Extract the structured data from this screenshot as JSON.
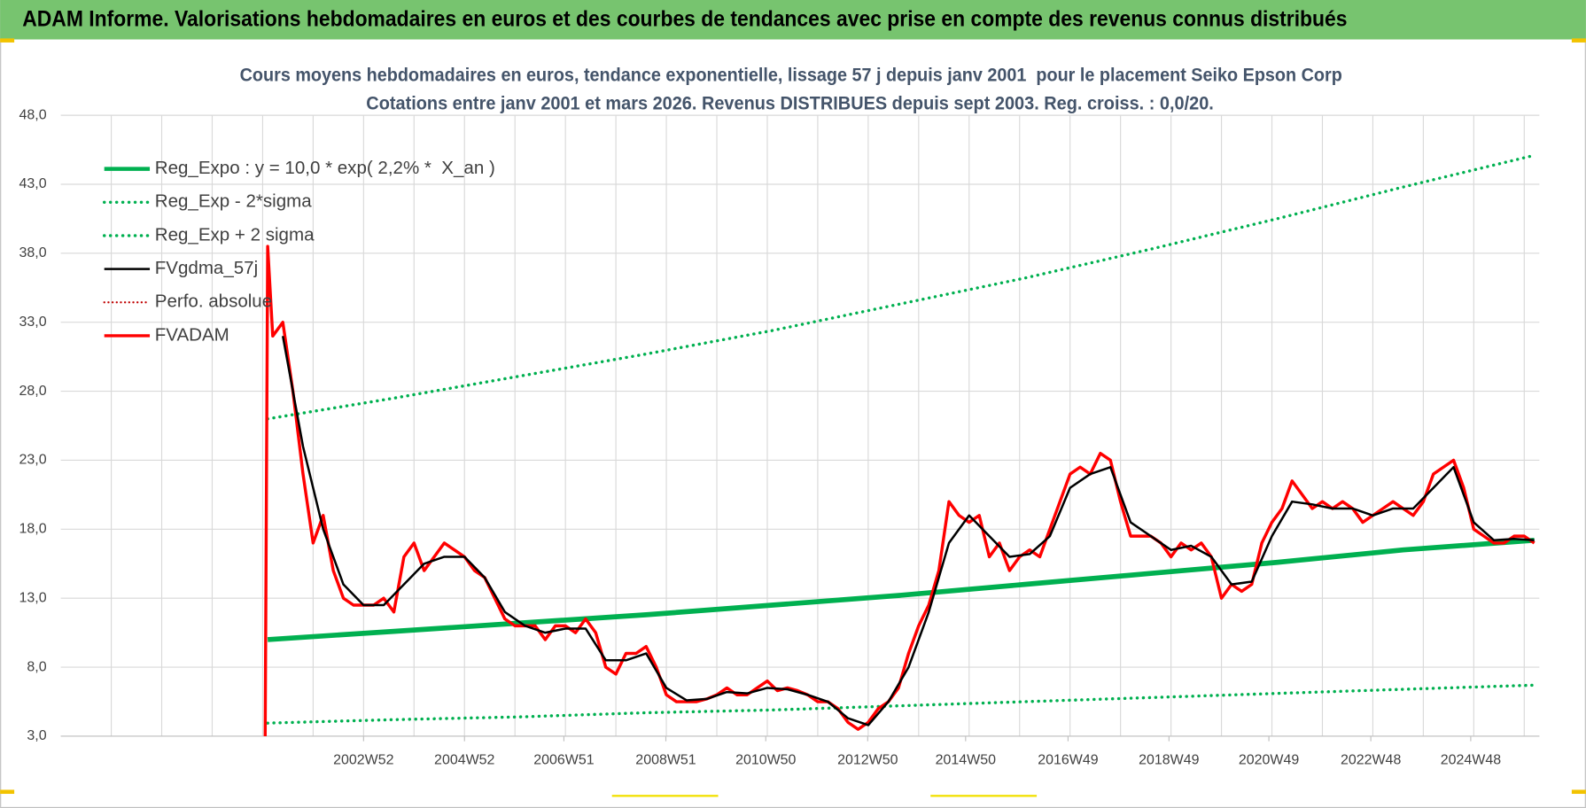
{
  "chart_data": {
    "type": "line",
    "header": "ADAM Informe. Valorisations hebdomadaires en euros et des courbes de tendances avec prise en compte des revenus connus distribués",
    "title": "Cours moyens hebdomadaires en euros, tendance exponentielle, lissage 57 j depuis janv 2001  pour le placement Seiko Epson Corp",
    "subtitle": "Cotations entre janv 2001 et mars 2026. Revenus DISTRIBUES depuis sept 2003. Reg. croiss. : 0,0/20.",
    "xlim": [
      1997,
      2026.3
    ],
    "ylim": [
      3,
      48
    ],
    "yticks": [
      {
        "value": 3,
        "label": "3,0"
      },
      {
        "value": 8,
        "label": "8,0"
      },
      {
        "value": 13,
        "label": "13,0"
      },
      {
        "value": 18,
        "label": "18,0"
      },
      {
        "value": 23,
        "label": "23,0"
      },
      {
        "value": 28,
        "label": "28,0"
      },
      {
        "value": 33,
        "label": "33,0"
      },
      {
        "value": 38,
        "label": "38,0"
      },
      {
        "value": 43,
        "label": "43,0"
      },
      {
        "value": 48,
        "label": "48,0"
      }
    ],
    "xticks": [
      {
        "value": 2003,
        "label": "2002W52"
      },
      {
        "value": 2005,
        "label": "2004W52"
      },
      {
        "value": 2006.97,
        "label": "2006W51"
      },
      {
        "value": 2008.99,
        "label": "2008W51"
      },
      {
        "value": 2010.97,
        "label": "2010W50"
      },
      {
        "value": 2012.99,
        "label": "2012W50"
      },
      {
        "value": 2014.93,
        "label": "2014W50"
      },
      {
        "value": 2016.96,
        "label": "2016W49"
      },
      {
        "value": 2018.96,
        "label": "2018W49"
      },
      {
        "value": 2020.94,
        "label": "2020W49"
      },
      {
        "value": 2022.96,
        "label": "2022W48"
      },
      {
        "value": 2024.94,
        "label": "2024W48"
      }
    ],
    "x_gridlines": [
      1998,
      1999,
      2000,
      2001,
      2002,
      2003,
      2004,
      2005,
      2006,
      2007,
      2008,
      2009,
      2010,
      2011,
      2012,
      2013,
      2014,
      2015,
      2016,
      2017,
      2018,
      2019,
      2020,
      2021,
      2022,
      2023,
      2024,
      2025,
      2026
    ],
    "grid": true,
    "legend": "top-left",
    "series": [
      {
        "name": "Reg_Expo : y = 10,0 * exp( 2,2% *  X_an )",
        "color": "#00b050",
        "style": "solid",
        "width": 5,
        "x": [
          2001.1,
          2003.6,
          2006.1,
          2008.6,
          2011.1,
          2013.6,
          2016.1,
          2018.6,
          2021.1,
          2023.6,
          2026.2
        ],
        "values": [
          10.0,
          10.6,
          11.2,
          11.8,
          12.5,
          13.2,
          14.0,
          14.8,
          15.6,
          16.5,
          17.2
        ]
      },
      {
        "name": "Reg_Exp - 2*sigma",
        "color": "#00b050",
        "style": "dotted",
        "width": 3,
        "x": [
          2001.1,
          2003.6,
          2006.1,
          2008.6,
          2011.1,
          2013.6,
          2016.1,
          2018.6,
          2021.1,
          2023.6,
          2026.2
        ],
        "values": [
          3.95,
          4.2,
          4.4,
          4.7,
          4.9,
          5.2,
          5.5,
          5.8,
          6.1,
          6.4,
          6.7
        ]
      },
      {
        "name": "Reg_Exp + 2 sigma",
        "color": "#00b050",
        "style": "dotted",
        "width": 3,
        "x": [
          2001.1,
          2003.6,
          2006.1,
          2008.6,
          2011.1,
          2013.6,
          2016.1,
          2018.6,
          2021.1,
          2023.6,
          2026.2
        ],
        "values": [
          26.0,
          27.5,
          29.1,
          30.7,
          32.4,
          34.3,
          36.2,
          38.3,
          40.5,
          42.8,
          45.1
        ]
      },
      {
        "name": "FVgdma_57j",
        "color": "#000000",
        "style": "solid",
        "width": 2.2,
        "x": [
          2001.4,
          2001.8,
          2002.2,
          2002.6,
          2003,
          2003.4,
          2003.8,
          2004.2,
          2004.6,
          2005,
          2005.4,
          2005.8,
          2006.2,
          2006.6,
          2007,
          2007.4,
          2007.8,
          2008.2,
          2008.6,
          2009,
          2009.4,
          2009.8,
          2010.2,
          2010.6,
          2011,
          2011.4,
          2011.8,
          2012.2,
          2012.6,
          2013,
          2013.4,
          2013.8,
          2014.2,
          2014.6,
          2015,
          2015.4,
          2015.8,
          2016.2,
          2016.6,
          2017,
          2017.4,
          2017.8,
          2018.2,
          2018.6,
          2019,
          2019.4,
          2019.8,
          2020.2,
          2020.6,
          2021,
          2021.4,
          2021.8,
          2022.2,
          2022.6,
          2023,
          2023.4,
          2023.8,
          2024.2,
          2024.6,
          2025,
          2025.4,
          2025.8,
          2026.2
        ],
        "values": [
          32,
          24,
          18,
          14,
          12.5,
          12.5,
          14,
          15.5,
          16,
          16,
          14.5,
          12,
          11,
          10.5,
          10.8,
          10.8,
          8.5,
          8.5,
          9,
          6.5,
          5.6,
          5.7,
          6.2,
          6.1,
          6.5,
          6.4,
          6,
          5.5,
          4.3,
          3.8,
          5.5,
          8,
          12,
          17,
          19,
          17.5,
          16,
          16.2,
          17.5,
          21,
          22,
          22.5,
          18.5,
          17.5,
          16.5,
          16.8,
          16,
          14,
          14.2,
          17.5,
          20,
          19.8,
          19.5,
          19.5,
          19,
          19.5,
          19.5,
          21,
          22.5,
          18.5,
          17.2,
          17.3,
          17.2
        ]
      },
      {
        "name": "Perfo. absolue",
        "color": "#c00000",
        "style": "dotted",
        "width": 2,
        "x": [],
        "values": []
      },
      {
        "name": "FVADAM",
        "color": "#ff0000",
        "style": "solid",
        "width": 3,
        "x": [
          2001.05,
          2001.1,
          2001.2,
          2001.4,
          2001.6,
          2001.8,
          2002,
          2002.2,
          2002.4,
          2002.6,
          2002.8,
          2003,
          2003.2,
          2003.4,
          2003.6,
          2003.8,
          2004,
          2004.2,
          2004.4,
          2004.6,
          2004.8,
          2005,
          2005.2,
          2005.4,
          2005.6,
          2005.8,
          2006,
          2006.2,
          2006.4,
          2006.6,
          2006.8,
          2007,
          2007.2,
          2007.4,
          2007.6,
          2007.8,
          2008,
          2008.2,
          2008.4,
          2008.6,
          2008.8,
          2009,
          2009.2,
          2009.4,
          2009.6,
          2009.8,
          2010,
          2010.2,
          2010.4,
          2010.6,
          2010.8,
          2011,
          2011.2,
          2011.4,
          2011.6,
          2011.8,
          2012,
          2012.2,
          2012.4,
          2012.6,
          2012.8,
          2013,
          2013.2,
          2013.4,
          2013.6,
          2013.8,
          2014,
          2014.2,
          2014.4,
          2014.6,
          2014.8,
          2015,
          2015.2,
          2015.4,
          2015.6,
          2015.8,
          2016,
          2016.2,
          2016.4,
          2016.6,
          2016.8,
          2017,
          2017.2,
          2017.4,
          2017.6,
          2017.8,
          2018,
          2018.2,
          2018.4,
          2018.6,
          2018.8,
          2019,
          2019.2,
          2019.4,
          2019.6,
          2019.8,
          2020,
          2020.2,
          2020.4,
          2020.6,
          2020.8,
          2021,
          2021.2,
          2021.4,
          2021.6,
          2021.8,
          2022,
          2022.2,
          2022.4,
          2022.6,
          2022.8,
          2023,
          2023.2,
          2023.4,
          2023.6,
          2023.8,
          2024,
          2024.2,
          2024.4,
          2024.6,
          2024.8,
          2025,
          2025.2,
          2025.4,
          2025.6,
          2025.8,
          2026,
          2026.2
        ],
        "values": [
          3,
          38.5,
          32,
          33,
          28,
          22,
          17,
          19,
          15,
          13,
          12.5,
          12.5,
          12.5,
          13,
          12,
          16,
          17,
          15,
          16,
          17,
          16.5,
          16,
          15,
          14.5,
          13,
          11.5,
          11,
          11,
          11,
          10,
          11,
          11,
          10.5,
          11.5,
          10.5,
          8,
          7.5,
          9,
          9,
          9.5,
          8,
          6,
          5.5,
          5.5,
          5.5,
          5.7,
          6,
          6.5,
          6,
          6,
          6.5,
          7,
          6.3,
          6.5,
          6.3,
          6,
          5.5,
          5.5,
          5,
          4,
          3.5,
          4,
          5,
          5.5,
          6.5,
          9,
          11,
          12.5,
          15,
          20,
          19,
          18.5,
          19,
          16,
          17,
          15,
          16,
          16.5,
          16,
          18,
          20,
          22,
          22.5,
          22,
          23.5,
          23,
          20,
          17.5,
          17.5,
          17.5,
          17,
          16,
          17,
          16.5,
          17,
          16,
          13,
          14,
          13.5,
          14,
          17,
          18.5,
          19.5,
          21.5,
          20.5,
          19.5,
          20,
          19.5,
          20,
          19.5,
          18.5,
          19,
          19.5,
          20,
          19.5,
          19,
          20,
          22,
          22.5,
          23,
          21,
          18,
          17.5,
          17,
          17,
          17.5,
          17.5,
          17
        ]
      }
    ]
  }
}
